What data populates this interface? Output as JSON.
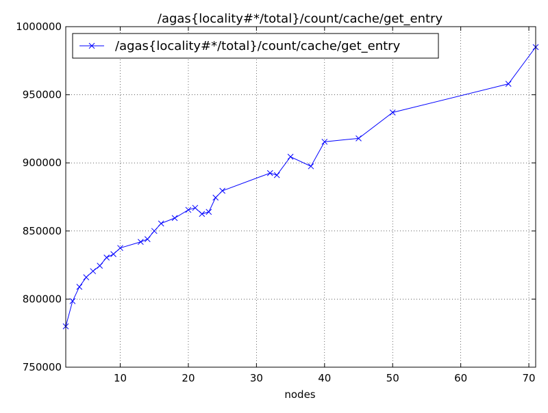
{
  "chart_data": {
    "type": "line",
    "title": "/agas{locality#*/total}/count/cache/get_entry",
    "xlabel": "nodes",
    "ylabel": "",
    "xlim": [
      2,
      71
    ],
    "ylim": [
      750000,
      1000000
    ],
    "xticks": [
      10,
      20,
      30,
      40,
      50,
      60,
      70
    ],
    "yticks": [
      750000,
      800000,
      850000,
      900000,
      950000,
      1000000
    ],
    "grid": true,
    "legend_position": "top-left",
    "series": [
      {
        "name": "/agas{locality#*/total}/count/cache/get_entry",
        "color": "#0000ff",
        "marker": "x",
        "x": [
          2,
          3,
          4,
          5,
          6,
          7,
          8,
          9,
          10,
          13,
          14,
          15,
          16,
          18,
          20,
          21,
          22,
          23,
          24,
          25,
          32,
          33,
          35,
          38,
          40,
          45,
          50,
          67,
          71
        ],
        "y": [
          780000,
          798500,
          809000,
          816000,
          820500,
          824500,
          830500,
          833000,
          837500,
          842000,
          844000,
          850000,
          855500,
          859500,
          865500,
          867000,
          862500,
          864000,
          874500,
          879500,
          892500,
          891000,
          904500,
          897500,
          915500,
          918000,
          937000,
          958000,
          985000
        ]
      }
    ]
  }
}
